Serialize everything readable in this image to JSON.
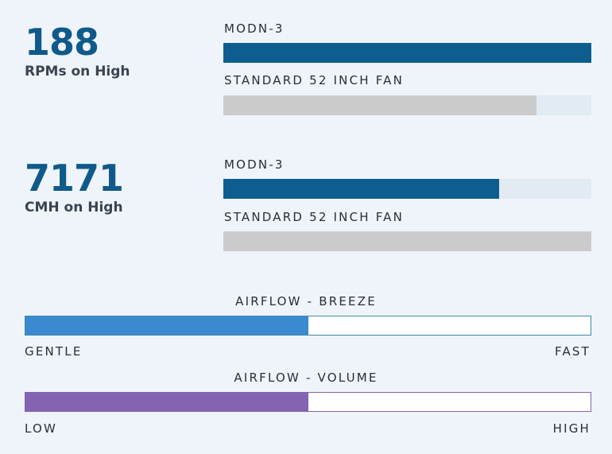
{
  "stats": [
    {
      "value": "188",
      "label": "RPMs on High",
      "bars": [
        {
          "label": "MODN-3",
          "fill_pct": 100,
          "color": "#0d5e8e"
        },
        {
          "label": "STANDARD 52 INCH FAN",
          "fill_pct": 85,
          "color": "#cbcbcb"
        }
      ]
    },
    {
      "value": "7171",
      "label": "CMH on High",
      "bars": [
        {
          "label": "MODN-3",
          "fill_pct": 75,
          "color": "#0d5e8e"
        },
        {
          "label": "STANDARD 52 INCH FAN",
          "fill_pct": 100,
          "color": "#cbcbcb"
        }
      ]
    }
  ],
  "scales": [
    {
      "title": "AIRFLOW - BREEZE",
      "fill_pct": 50,
      "color": "#3a8ad0",
      "border_color": "#3d8aa5",
      "low_label": "GENTLE",
      "high_label": "FAST"
    },
    {
      "title": "AIRFLOW - VOLUME",
      "fill_pct": 50,
      "color": "#8464b0",
      "border_color": "#8464b0",
      "low_label": "LOW",
      "high_label": "HIGH"
    }
  ]
}
